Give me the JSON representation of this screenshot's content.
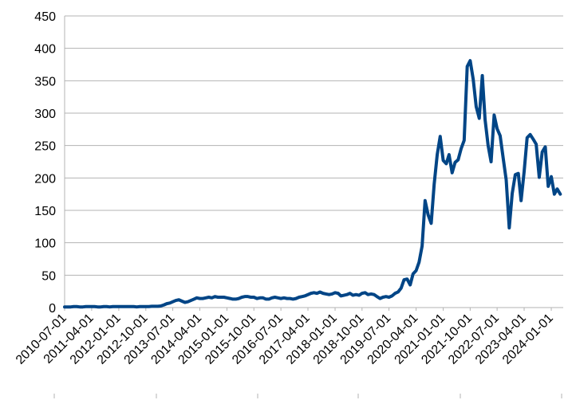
{
  "chart_data": {
    "type": "line",
    "ylim": [
      0,
      450
    ],
    "yticks": [
      0,
      50,
      100,
      150,
      200,
      250,
      300,
      350,
      400,
      450
    ],
    "xtick_labels": [
      "2010-07-01",
      "2011-04-01",
      "2012-01-01",
      "2012-10-01",
      "2013-07-01",
      "2014-04-01",
      "2015-01-01",
      "2015-10-01",
      "2016-07-01",
      "2017-04-01",
      "2018-01-01",
      "2018-10-01",
      "2019-07-01",
      "2020-04-01",
      "2021-01-01",
      "2021-10-01",
      "2022-07-01",
      "2023-04-01",
      "2024-01-01"
    ],
    "grid": true,
    "legend": "none",
    "series": [
      {
        "color": "#004586",
        "points": [
          [
            "2010-07-01",
            1
          ],
          [
            "2010-08-01",
            1
          ],
          [
            "2010-09-01",
            1
          ],
          [
            "2010-10-01",
            1.5
          ],
          [
            "2010-11-01",
            1.5
          ],
          [
            "2010-12-01",
            1
          ],
          [
            "2011-01-01",
            1
          ],
          [
            "2011-02-01",
            1.5
          ],
          [
            "2011-03-01",
            1.5
          ],
          [
            "2011-04-01",
            1.5
          ],
          [
            "2011-05-01",
            1.5
          ],
          [
            "2011-06-01",
            1
          ],
          [
            "2011-07-01",
            1
          ],
          [
            "2011-08-01",
            1.5
          ],
          [
            "2011-09-01",
            1.5
          ],
          [
            "2011-10-01",
            1
          ],
          [
            "2011-11-01",
            1.5
          ],
          [
            "2011-12-01",
            1.5
          ],
          [
            "2012-01-01",
            1.5
          ],
          [
            "2012-02-01",
            1.5
          ],
          [
            "2012-03-01",
            1.5
          ],
          [
            "2012-04-01",
            1.5
          ],
          [
            "2012-05-01",
            1.5
          ],
          [
            "2012-06-01",
            1.5
          ],
          [
            "2012-07-01",
            1
          ],
          [
            "2012-08-01",
            1.5
          ],
          [
            "2012-09-01",
            1.5
          ],
          [
            "2012-10-01",
            1.5
          ],
          [
            "2012-11-01",
            1.5
          ],
          [
            "2012-12-01",
            2
          ],
          [
            "2013-01-01",
            2
          ],
          [
            "2013-02-01",
            2
          ],
          [
            "2013-03-01",
            2.5
          ],
          [
            "2013-04-01",
            4
          ],
          [
            "2013-05-01",
            6
          ],
          [
            "2013-06-01",
            7
          ],
          [
            "2013-07-01",
            9
          ],
          [
            "2013-08-01",
            11
          ],
          [
            "2013-09-01",
            12
          ],
          [
            "2013-10-01",
            10
          ],
          [
            "2013-11-01",
            8
          ],
          [
            "2013-12-01",
            9
          ],
          [
            "2014-01-01",
            11
          ],
          [
            "2014-02-01",
            13
          ],
          [
            "2014-03-01",
            15
          ],
          [
            "2014-04-01",
            14
          ],
          [
            "2014-05-01",
            14
          ],
          [
            "2014-06-01",
            15
          ],
          [
            "2014-07-01",
            16
          ],
          [
            "2014-08-01",
            15
          ],
          [
            "2014-09-01",
            17
          ],
          [
            "2014-10-01",
            16
          ],
          [
            "2014-11-01",
            16
          ],
          [
            "2014-12-01",
            16
          ],
          [
            "2015-01-01",
            15
          ],
          [
            "2015-02-01",
            14
          ],
          [
            "2015-03-01",
            13
          ],
          [
            "2015-04-01",
            13
          ],
          [
            "2015-05-01",
            14
          ],
          [
            "2015-06-01",
            16
          ],
          [
            "2015-07-01",
            17
          ],
          [
            "2015-08-01",
            17
          ],
          [
            "2015-09-01",
            16
          ],
          [
            "2015-10-01",
            16
          ],
          [
            "2015-11-01",
            14
          ],
          [
            "2015-12-01",
            15
          ],
          [
            "2016-01-01",
            15
          ],
          [
            "2016-02-01",
            13
          ],
          [
            "2016-03-01",
            13
          ],
          [
            "2016-04-01",
            15
          ],
          [
            "2016-05-01",
            16
          ],
          [
            "2016-06-01",
            15
          ],
          [
            "2016-07-01",
            14
          ],
          [
            "2016-08-01",
            15
          ],
          [
            "2016-09-01",
            14
          ],
          [
            "2016-10-01",
            14
          ],
          [
            "2016-11-01",
            13
          ],
          [
            "2016-12-01",
            14
          ],
          [
            "2017-01-01",
            16
          ],
          [
            "2017-02-01",
            17
          ],
          [
            "2017-03-01",
            18
          ],
          [
            "2017-04-01",
            20
          ],
          [
            "2017-05-01",
            22
          ],
          [
            "2017-06-01",
            23
          ],
          [
            "2017-07-01",
            22
          ],
          [
            "2017-08-01",
            24
          ],
          [
            "2017-09-01",
            22
          ],
          [
            "2017-10-01",
            21
          ],
          [
            "2017-11-01",
            20
          ],
          [
            "2017-12-01",
            21
          ],
          [
            "2018-01-01",
            23
          ],
          [
            "2018-02-01",
            22
          ],
          [
            "2018-03-01",
            18
          ],
          [
            "2018-04-01",
            19
          ],
          [
            "2018-05-01",
            20
          ],
          [
            "2018-06-01",
            22
          ],
          [
            "2018-07-01",
            19
          ],
          [
            "2018-08-01",
            20
          ],
          [
            "2018-09-01",
            19
          ],
          [
            "2018-10-01",
            22
          ],
          [
            "2018-11-01",
            23
          ],
          [
            "2018-12-01",
            20
          ],
          [
            "2019-01-01",
            21
          ],
          [
            "2019-02-01",
            20
          ],
          [
            "2019-03-01",
            17
          ],
          [
            "2019-04-01",
            14
          ],
          [
            "2019-05-01",
            16
          ],
          [
            "2019-06-01",
            17
          ],
          [
            "2019-07-01",
            16
          ],
          [
            "2019-08-01",
            18
          ],
          [
            "2019-09-01",
            22
          ],
          [
            "2019-10-01",
            24
          ],
          [
            "2019-11-01",
            30
          ],
          [
            "2019-12-01",
            43
          ],
          [
            "2020-01-01",
            44
          ],
          [
            "2020-02-01",
            35
          ],
          [
            "2020-03-01",
            52
          ],
          [
            "2020-04-01",
            57
          ],
          [
            "2020-05-01",
            70
          ],
          [
            "2020-06-01",
            95
          ],
          [
            "2020-07-01",
            165
          ],
          [
            "2020-08-01",
            143
          ],
          [
            "2020-09-01",
            130
          ],
          [
            "2020-10-01",
            190
          ],
          [
            "2020-11-01",
            236
          ],
          [
            "2020-12-01",
            264
          ],
          [
            "2021-01-01",
            227
          ],
          [
            "2021-02-01",
            222
          ],
          [
            "2021-03-01",
            236
          ],
          [
            "2021-04-01",
            208
          ],
          [
            "2021-05-01",
            224
          ],
          [
            "2021-06-01",
            228
          ],
          [
            "2021-07-01",
            245
          ],
          [
            "2021-08-01",
            258
          ],
          [
            "2021-09-01",
            372
          ],
          [
            "2021-10-01",
            381
          ],
          [
            "2021-11-01",
            352
          ],
          [
            "2021-12-01",
            310
          ],
          [
            "2022-01-01",
            292
          ],
          [
            "2022-02-01",
            358
          ],
          [
            "2022-03-01",
            290
          ],
          [
            "2022-04-01",
            250
          ],
          [
            "2022-05-01",
            225
          ],
          [
            "2022-06-01",
            297
          ],
          [
            "2022-07-01",
            276
          ],
          [
            "2022-08-01",
            265
          ],
          [
            "2022-09-01",
            230
          ],
          [
            "2022-10-01",
            197
          ],
          [
            "2022-11-01",
            123
          ],
          [
            "2022-12-01",
            176
          ],
          [
            "2023-01-01",
            205
          ],
          [
            "2023-02-01",
            207
          ],
          [
            "2023-03-01",
            165
          ],
          [
            "2023-04-01",
            210
          ],
          [
            "2023-05-01",
            262
          ],
          [
            "2023-06-01",
            267
          ],
          [
            "2023-07-01",
            260
          ],
          [
            "2023-08-01",
            252
          ],
          [
            "2023-09-01",
            201
          ],
          [
            "2023-10-01",
            240
          ],
          [
            "2023-11-01",
            248
          ],
          [
            "2023-12-01",
            187
          ],
          [
            "2024-01-01",
            202
          ],
          [
            "2024-02-01",
            175
          ],
          [
            "2024-03-01",
            183
          ],
          [
            "2024-04-01",
            175
          ]
        ]
      }
    ]
  }
}
